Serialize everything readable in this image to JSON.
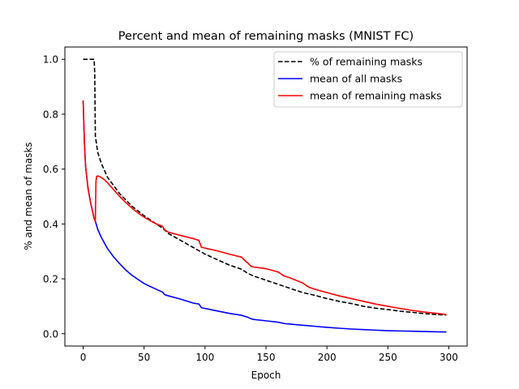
{
  "chart_data": {
    "type": "line",
    "title": "Percent and mean of remaining masks (MNIST FC)",
    "xlabel": "Epoch",
    "ylabel": "% and mean of masks",
    "xlim": [
      -15,
      315
    ],
    "ylim": [
      -0.045,
      1.045
    ],
    "xticks": [
      0,
      50,
      100,
      150,
      200,
      250,
      300
    ],
    "yticks": [
      0.0,
      0.2,
      0.4,
      0.6,
      0.8,
      1.0
    ],
    "grid": false,
    "legend_position": "top-right",
    "series": [
      {
        "name": "% of remaining masks",
        "color": "#000000",
        "dash": "dashed",
        "points": [
          [
            0,
            1.0
          ],
          [
            9,
            1.0
          ],
          [
            9.5,
            0.95
          ],
          [
            10,
            0.72
          ],
          [
            12,
            0.66
          ],
          [
            15,
            0.62
          ],
          [
            20,
            0.57
          ],
          [
            25,
            0.54
          ],
          [
            30,
            0.51
          ],
          [
            40,
            0.465
          ],
          [
            50,
            0.43
          ],
          [
            60,
            0.4
          ],
          [
            65,
            0.385
          ],
          [
            70,
            0.365
          ],
          [
            80,
            0.34
          ],
          [
            90,
            0.315
          ],
          [
            100,
            0.29
          ],
          [
            110,
            0.27
          ],
          [
            120,
            0.25
          ],
          [
            130,
            0.235
          ],
          [
            135,
            0.22
          ],
          [
            140,
            0.21
          ],
          [
            150,
            0.195
          ],
          [
            160,
            0.18
          ],
          [
            170,
            0.165
          ],
          [
            180,
            0.15
          ],
          [
            190,
            0.14
          ],
          [
            200,
            0.128
          ],
          [
            210,
            0.118
          ],
          [
            220,
            0.11
          ],
          [
            230,
            0.1
          ],
          [
            240,
            0.093
          ],
          [
            250,
            0.088
          ],
          [
            260,
            0.082
          ],
          [
            270,
            0.078
          ],
          [
            280,
            0.073
          ],
          [
            290,
            0.07
          ],
          [
            298,
            0.068
          ]
        ]
      },
      {
        "name": "mean of all masks",
        "color": "#0000ff",
        "dash": "solid",
        "points": [
          [
            0,
            0.85
          ],
          [
            1,
            0.7
          ],
          [
            2,
            0.61
          ],
          [
            4,
            0.53
          ],
          [
            6,
            0.48
          ],
          [
            8,
            0.44
          ],
          [
            9,
            0.42
          ],
          [
            10,
            0.41
          ],
          [
            12,
            0.38
          ],
          [
            15,
            0.35
          ],
          [
            20,
            0.31
          ],
          [
            25,
            0.28
          ],
          [
            30,
            0.255
          ],
          [
            35,
            0.232
          ],
          [
            40,
            0.213
          ],
          [
            45,
            0.198
          ],
          [
            50,
            0.183
          ],
          [
            55,
            0.172
          ],
          [
            60,
            0.162
          ],
          [
            65,
            0.152
          ],
          [
            67,
            0.142
          ],
          [
            70,
            0.138
          ],
          [
            80,
            0.126
          ],
          [
            90,
            0.112
          ],
          [
            95,
            0.108
          ],
          [
            97,
            0.095
          ],
          [
            100,
            0.092
          ],
          [
            110,
            0.083
          ],
          [
            120,
            0.074
          ],
          [
            130,
            0.067
          ],
          [
            135,
            0.06
          ],
          [
            138,
            0.054
          ],
          [
            140,
            0.052
          ],
          [
            150,
            0.047
          ],
          [
            160,
            0.042
          ],
          [
            165,
            0.037
          ],
          [
            170,
            0.035
          ],
          [
            180,
            0.031
          ],
          [
            190,
            0.027
          ],
          [
            200,
            0.023
          ],
          [
            210,
            0.02
          ],
          [
            220,
            0.017
          ],
          [
            230,
            0.015
          ],
          [
            240,
            0.013
          ],
          [
            250,
            0.011
          ],
          [
            260,
            0.01
          ],
          [
            270,
            0.009
          ],
          [
            280,
            0.008
          ],
          [
            290,
            0.007
          ],
          [
            298,
            0.006
          ]
        ]
      },
      {
        "name": "mean of remaining masks",
        "color": "#ff0000",
        "dash": "solid",
        "points": [
          [
            0,
            0.85
          ],
          [
            1,
            0.7
          ],
          [
            2,
            0.61
          ],
          [
            4,
            0.53
          ],
          [
            6,
            0.48
          ],
          [
            8,
            0.44
          ],
          [
            9,
            0.42
          ],
          [
            10,
            0.41
          ],
          [
            10.5,
            0.555
          ],
          [
            11,
            0.573
          ],
          [
            12,
            0.575
          ],
          [
            14,
            0.572
          ],
          [
            17,
            0.563
          ],
          [
            20,
            0.55
          ],
          [
            25,
            0.525
          ],
          [
            30,
            0.5
          ],
          [
            35,
            0.478
          ],
          [
            40,
            0.458
          ],
          [
            45,
            0.44
          ],
          [
            50,
            0.425
          ],
          [
            55,
            0.412
          ],
          [
            60,
            0.4
          ],
          [
            65,
            0.392
          ],
          [
            67,
            0.378
          ],
          [
            70,
            0.37
          ],
          [
            80,
            0.358
          ],
          [
            90,
            0.347
          ],
          [
            95,
            0.34
          ],
          [
            97,
            0.315
          ],
          [
            100,
            0.312
          ],
          [
            110,
            0.302
          ],
          [
            120,
            0.29
          ],
          [
            130,
            0.279
          ],
          [
            133,
            0.265
          ],
          [
            135,
            0.258
          ],
          [
            138,
            0.245
          ],
          [
            140,
            0.243
          ],
          [
            150,
            0.237
          ],
          [
            160,
            0.225
          ],
          [
            165,
            0.21
          ],
          [
            170,
            0.203
          ],
          [
            180,
            0.185
          ],
          [
            185,
            0.17
          ],
          [
            190,
            0.162
          ],
          [
            200,
            0.15
          ],
          [
            210,
            0.138
          ],
          [
            220,
            0.128
          ],
          [
            230,
            0.118
          ],
          [
            240,
            0.108
          ],
          [
            250,
            0.1
          ],
          [
            260,
            0.092
          ],
          [
            270,
            0.085
          ],
          [
            280,
            0.079
          ],
          [
            290,
            0.074
          ],
          [
            298,
            0.07
          ]
        ]
      }
    ]
  }
}
